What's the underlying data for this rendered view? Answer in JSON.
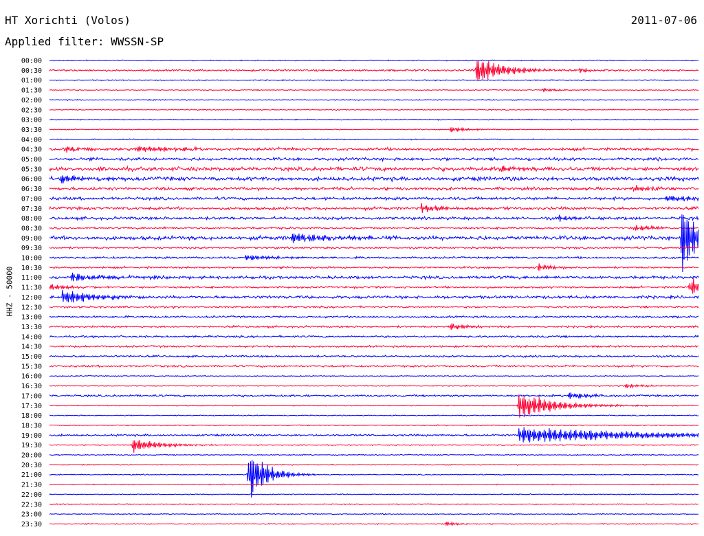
{
  "header": {
    "station": "HT Xorichti (Volos)",
    "date": "2011-07-06",
    "filter_label": "Applied filter: WWSSN-SP"
  },
  "chart_data": {
    "type": "line",
    "ylabel": "HHZ - 50000",
    "colors": {
      "even_row": "#0000ff",
      "odd_row": "#ff0033"
    },
    "rows": [
      "00:00",
      "00:30",
      "01:00",
      "01:30",
      "02:00",
      "02:30",
      "03:00",
      "03:30",
      "04:00",
      "04:30",
      "05:00",
      "05:30",
      "06:00",
      "06:30",
      "07:00",
      "07:30",
      "08:00",
      "08:30",
      "09:00",
      "09:30",
      "10:00",
      "10:30",
      "11:00",
      "11:30",
      "12:00",
      "12:30",
      "13:00",
      "13:30",
      "14:00",
      "14:30",
      "15:00",
      "15:30",
      "16:00",
      "16:30",
      "17:00",
      "17:30",
      "18:00",
      "18:30",
      "19:00",
      "19:30",
      "20:00",
      "20:30",
      "21:00",
      "21:30",
      "22:00",
      "22:30",
      "23:00",
      "23:30"
    ],
    "noise_level": [
      1,
      2,
      1,
      1,
      1,
      1,
      1,
      1,
      1,
      3,
      3,
      4,
      4,
      3,
      3,
      3,
      3,
      2,
      4,
      2,
      2,
      2,
      3,
      2,
      3,
      2,
      2,
      2,
      2,
      2,
      2,
      2,
      1,
      1,
      2,
      1,
      1,
      1,
      2,
      1,
      1,
      1,
      1,
      1,
      1,
      1,
      1,
      1
    ],
    "events": [
      {
        "row": 1,
        "minute": 19.7,
        "amplitude": 22,
        "duration": 1.3
      },
      {
        "row": 1,
        "minute": 24.5,
        "amplitude": 3,
        "duration": 0.6
      },
      {
        "row": 3,
        "minute": 22.8,
        "amplitude": 3,
        "duration": 0.8
      },
      {
        "row": 7,
        "minute": 18.5,
        "amplitude": 5,
        "duration": 0.8
      },
      {
        "row": 9,
        "minute": 0.7,
        "amplitude": 5,
        "duration": 0.8
      },
      {
        "row": 9,
        "minute": 4.0,
        "amplitude": 5,
        "duration": 2.0
      },
      {
        "row": 11,
        "minute": 20.8,
        "amplitude": 5,
        "duration": 1.2
      },
      {
        "row": 12,
        "minute": 0.5,
        "amplitude": 6,
        "duration": 1.5
      },
      {
        "row": 13,
        "minute": 27.0,
        "amplitude": 5,
        "duration": 1.0
      },
      {
        "row": 14,
        "minute": 28.5,
        "amplitude": 5,
        "duration": 1.5
      },
      {
        "row": 15,
        "minute": 17.2,
        "amplitude": 7,
        "duration": 1.0
      },
      {
        "row": 16,
        "minute": 23.5,
        "amplitude": 5,
        "duration": 0.6
      },
      {
        "row": 17,
        "minute": 27.0,
        "amplitude": 6,
        "duration": 0.8
      },
      {
        "row": 18,
        "minute": 11.2,
        "amplitude": 8,
        "duration": 1.8
      },
      {
        "row": 18,
        "minute": 29.2,
        "amplitude": 60,
        "duration": 0.8
      },
      {
        "row": 20,
        "minute": 9.0,
        "amplitude": 5,
        "duration": 1.3
      },
      {
        "row": 21,
        "minute": 22.6,
        "amplitude": 6,
        "duration": 0.6
      },
      {
        "row": 22,
        "minute": 1.0,
        "amplitude": 6,
        "duration": 1.8
      },
      {
        "row": 23,
        "minute": 0.0,
        "amplitude": 6,
        "duration": 0.8
      },
      {
        "row": 23,
        "minute": 29.6,
        "amplitude": 16,
        "duration": 0.6
      },
      {
        "row": 24,
        "minute": 0.6,
        "amplitude": 12,
        "duration": 1.5
      },
      {
        "row": 27,
        "minute": 18.5,
        "amplitude": 6,
        "duration": 0.8
      },
      {
        "row": 33,
        "minute": 26.6,
        "amplitude": 4,
        "duration": 0.8
      },
      {
        "row": 34,
        "minute": 24.0,
        "amplitude": 6,
        "duration": 0.8
      },
      {
        "row": 35,
        "minute": 21.7,
        "amplitude": 22,
        "duration": 1.6
      },
      {
        "row": 38,
        "minute": 21.7,
        "amplitude": 13,
        "duration": 6.0
      },
      {
        "row": 39,
        "minute": 3.8,
        "amplitude": 12,
        "duration": 1.2
      },
      {
        "row": 42,
        "minute": 9.2,
        "amplitude": 45,
        "duration": 0.8
      },
      {
        "row": 47,
        "minute": 18.3,
        "amplitude": 4,
        "duration": 0.5
      }
    ]
  }
}
